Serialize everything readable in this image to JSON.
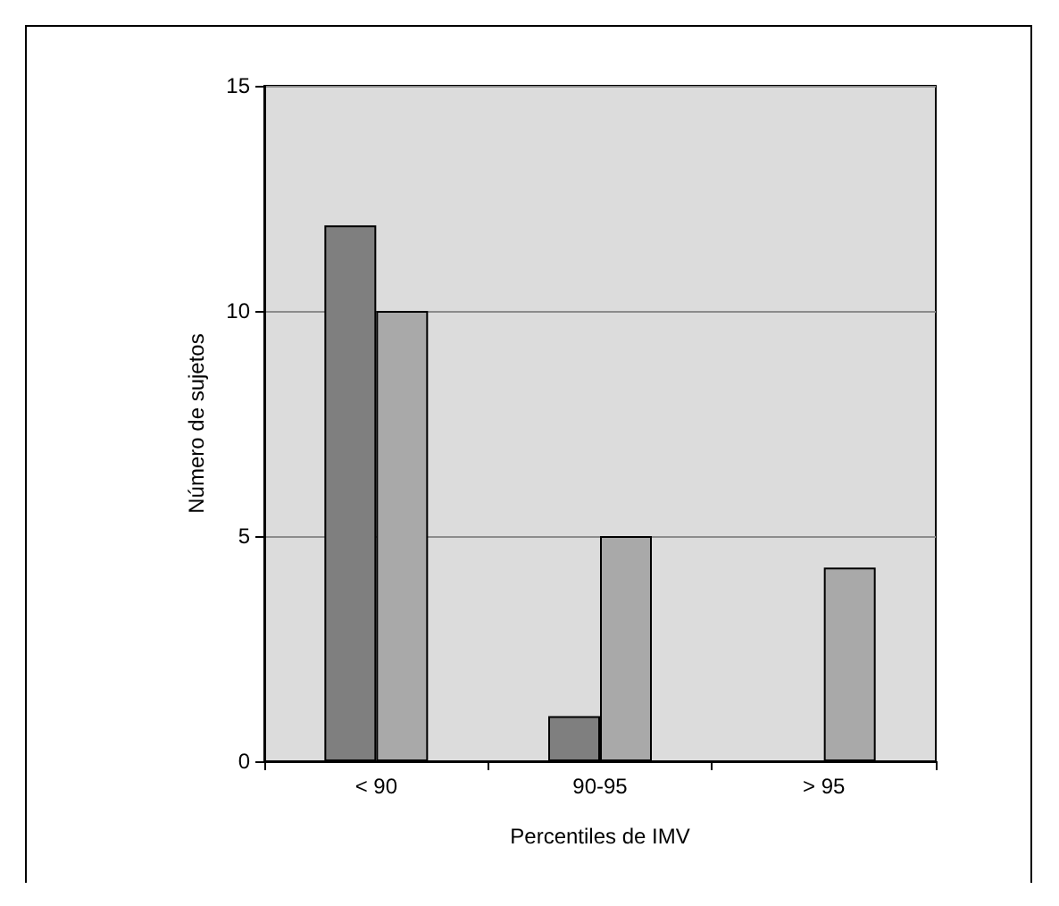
{
  "chart_data": {
    "type": "bar",
    "xlabel": "Percentiles de IMV",
    "ylabel": "Número de sujetos",
    "categories": [
      "< 90",
      "90-95",
      "> 95"
    ],
    "series": [
      {
        "color": "#7f7f7f",
        "values": [
          11.9,
          1,
          0
        ]
      },
      {
        "color": "#a9a9a9",
        "values": [
          10,
          5,
          4.3
        ]
      }
    ],
    "ylim": [
      0,
      15
    ],
    "yticks": [
      0,
      5,
      10,
      15
    ],
    "grid": "y"
  }
}
